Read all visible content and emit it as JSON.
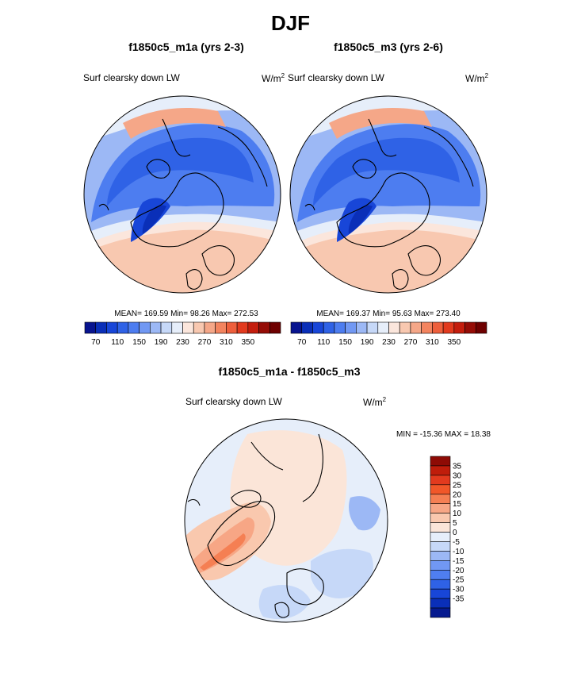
{
  "page": {
    "title": "DJF"
  },
  "panels": [
    {
      "title": "f1850c5_m1a (yrs 2-3)",
      "variable": "Surf clearsky down LW",
      "units_base": "W/m",
      "units_sup": "2",
      "stats": "MEAN= 169.59  Min=  98.26  Max= 272.53"
    },
    {
      "title": "f1850c5_m3 (yrs 2-6)",
      "variable": "Surf clearsky down LW",
      "units_base": "W/m",
      "units_sup": "2",
      "stats": "MEAN= 169.37  Min=  95.63  Max= 273.40"
    },
    {
      "title": "f1850c5_m1a - f1850c5_m3",
      "variable": "Surf clearsky down LW",
      "units_base": "W/m",
      "units_sup": "2",
      "stats": "MIN = -15.36 MAX =  18.38"
    }
  ],
  "colorbar_abs": {
    "colors": [
      "#08148f",
      "#0a2fb8",
      "#1846d8",
      "#2f62e6",
      "#4d7df0",
      "#7198f3",
      "#9cb8f5",
      "#c6d8f8",
      "#e6eefa",
      "#fbe6dc",
      "#f8c8b0",
      "#f5a788",
      "#f3845f",
      "#ee5f3c",
      "#e23a1e",
      "#c41d0d",
      "#950c06",
      "#6e0000"
    ],
    "tick_labels": [
      "70",
      "110",
      "150",
      "190",
      "230",
      "270",
      "310",
      "350"
    ]
  },
  "colorbar_diff": {
    "colors_top_to_bottom": [
      "#8e0b05",
      "#bf1d0b",
      "#e23a1e",
      "#f15729",
      "#f57f53",
      "#f7a685",
      "#f9c8ae",
      "#fbe5d8",
      "#e6eefa",
      "#c6d8f8",
      "#9cb8f5",
      "#7198f3",
      "#4f7ef0",
      "#2f62e6",
      "#1846d8",
      "#0a2fb8",
      "#061a8f"
    ],
    "tick_labels": [
      "35",
      "30",
      "25",
      "20",
      "15",
      "10",
      "5",
      "0",
      "-5",
      "-10",
      "-15",
      "-20",
      "-25",
      "-30",
      "-35"
    ]
  },
  "chart_data": [
    {
      "type": "heatmap",
      "title": "f1850c5_m1a (yrs 2-3)",
      "subtitle": "Surf clearsky down LW",
      "units": "W/m2",
      "projection": "north polar stereographic",
      "season": "DJF",
      "mean": 169.59,
      "min": 98.26,
      "max": 272.53,
      "contour_levels": [
        70,
        90,
        110,
        130,
        150,
        170,
        190,
        210,
        230,
        250,
        270,
        290,
        310,
        330,
        350
      ]
    },
    {
      "type": "heatmap",
      "title": "f1850c5_m3 (yrs 2-6)",
      "subtitle": "Surf clearsky down LW",
      "units": "W/m2",
      "projection": "north polar stereographic",
      "season": "DJF",
      "mean": 169.37,
      "min": 95.63,
      "max": 273.4,
      "contour_levels": [
        70,
        90,
        110,
        130,
        150,
        170,
        190,
        210,
        230,
        250,
        270,
        290,
        310,
        330,
        350
      ]
    },
    {
      "type": "heatmap",
      "title": "f1850c5_m1a - f1850c5_m3",
      "subtitle": "Surf clearsky down LW",
      "units": "W/m2",
      "projection": "north polar stereographic",
      "season": "DJF",
      "min": -15.36,
      "max": 18.38,
      "contour_levels": [
        -35,
        -30,
        -25,
        -20,
        -15,
        -10,
        -5,
        0,
        5,
        10,
        15,
        20,
        25,
        30,
        35
      ]
    }
  ]
}
